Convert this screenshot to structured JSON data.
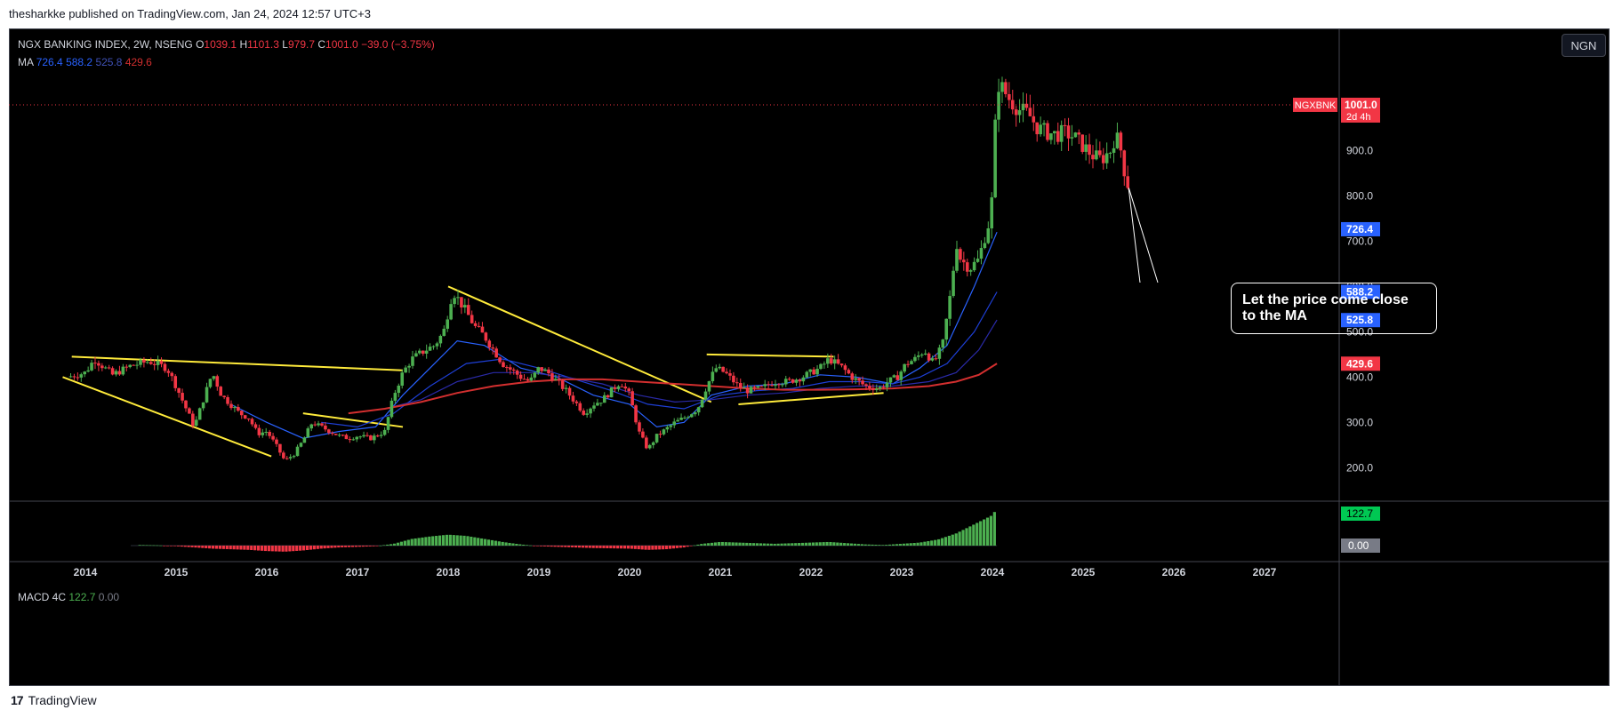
{
  "header": {
    "published_by": "thesharkke published on TradingView.com, Jan 24, 2024 12:57 UTC+3"
  },
  "footer": {
    "logo_text": "TradingView"
  },
  "currency_button": "NGN",
  "legend": {
    "symbol": "NGX BANKING INDEX, 2W, NSENG",
    "o_label": "O",
    "o_value": "1039.1",
    "h_label": "H",
    "h_value": "1101.3",
    "l_label": "L",
    "l_value": "979.7",
    "c_label": "C",
    "c_value": "1001.0",
    "change": "−39.0 (−3.75%)",
    "ma_label": "MA",
    "ma_values": [
      "726.4",
      "588.2",
      "525.8",
      "429.6"
    ]
  },
  "macd_legend": {
    "label": "MACD 4C",
    "value1": "122.7",
    "value2": "0.00"
  },
  "annotation": {
    "text": "Let the price come close\n to the MA"
  },
  "colors": {
    "bull": "#4caf50",
    "bear": "#f23645",
    "trendline": "#ffeb3b",
    "ma_fast": "#2962ff",
    "ma_mid": "#1e3fd6",
    "ma_slow": "#2a2aa8",
    "ma_long": "#d32f2f"
  },
  "chart_data": {
    "type": "candlestick",
    "timeframe": "2W",
    "x_tick_labels": [
      "2014",
      "2015",
      "2016",
      "2017",
      "2018",
      "2019",
      "2020",
      "2021",
      "2022",
      "2023",
      "2024",
      "2025",
      "2026",
      "2027"
    ],
    "y_tick_labels": [
      "200.0",
      "300.0",
      "400.0",
      "500.0",
      "600.0",
      "700.0",
      "800.0",
      "900.0",
      "1001.0"
    ],
    "ylim": [
      130,
      1150
    ],
    "price_label": {
      "symbol": "NGXBNK",
      "value": "1001.0",
      "countdown": "2d 4h",
      "value_num": 1001.0
    },
    "ma_labels": [
      {
        "value": "726.4",
        "num": 726.4,
        "color": "#2962ff"
      },
      {
        "value": "588.2",
        "num": 588.2,
        "color": "#2962ff"
      },
      {
        "value": "525.8",
        "num": 525.8,
        "color": "#2962ff"
      },
      {
        "value": "429.6",
        "num": 429.6,
        "color": "#f23645"
      }
    ],
    "price_path": [
      [
        2013.8,
        400
      ],
      [
        2014.0,
        410
      ],
      [
        2014.1,
        440
      ],
      [
        2014.3,
        405
      ],
      [
        2014.5,
        425
      ],
      [
        2014.7,
        435
      ],
      [
        2014.9,
        420
      ],
      [
        2015.0,
        380
      ],
      [
        2015.2,
        290
      ],
      [
        2015.3,
        350
      ],
      [
        2015.4,
        410
      ],
      [
        2015.5,
        360
      ],
      [
        2015.7,
        320
      ],
      [
        2015.8,
        310
      ],
      [
        2015.9,
        275
      ],
      [
        2016.0,
        280
      ],
      [
        2016.1,
        250
      ],
      [
        2016.2,
        215
      ],
      [
        2016.3,
        230
      ],
      [
        2016.4,
        260
      ],
      [
        2016.5,
        300
      ],
      [
        2016.6,
        290
      ],
      [
        2016.8,
        270
      ],
      [
        2016.9,
        265
      ],
      [
        2017.0,
        270
      ],
      [
        2017.15,
        265
      ],
      [
        2017.3,
        280
      ],
      [
        2017.4,
        360
      ],
      [
        2017.5,
        410
      ],
      [
        2017.6,
        440
      ],
      [
        2017.75,
        460
      ],
      [
        2017.85,
        470
      ],
      [
        2017.95,
        500
      ],
      [
        2018.05,
        590
      ],
      [
        2018.15,
        560
      ],
      [
        2018.3,
        510
      ],
      [
        2018.4,
        490
      ],
      [
        2018.5,
        460
      ],
      [
        2018.6,
        430
      ],
      [
        2018.8,
        400
      ],
      [
        2018.9,
        390
      ],
      [
        2019.0,
        420
      ],
      [
        2019.1,
        410
      ],
      [
        2019.2,
        390
      ],
      [
        2019.3,
        370
      ],
      [
        2019.5,
        320
      ],
      [
        2019.6,
        340
      ],
      [
        2019.7,
        350
      ],
      [
        2019.8,
        370
      ],
      [
        2019.9,
        390
      ],
      [
        2020.0,
        360
      ],
      [
        2020.1,
        280
      ],
      [
        2020.2,
        240
      ],
      [
        2020.3,
        270
      ],
      [
        2020.5,
        300
      ],
      [
        2020.6,
        310
      ],
      [
        2020.75,
        330
      ],
      [
        2020.85,
        380
      ],
      [
        2020.95,
        420
      ],
      [
        2021.05,
        410
      ],
      [
        2021.2,
        380
      ],
      [
        2021.3,
        370
      ],
      [
        2021.45,
        375
      ],
      [
        2021.6,
        390
      ],
      [
        2021.75,
        390
      ],
      [
        2021.9,
        400
      ],
      [
        2022.0,
        410
      ],
      [
        2022.1,
        420
      ],
      [
        2022.2,
        440
      ],
      [
        2022.35,
        420
      ],
      [
        2022.45,
        400
      ],
      [
        2022.6,
        380
      ],
      [
        2022.75,
        375
      ],
      [
        2022.85,
        390
      ],
      [
        2022.95,
        400
      ],
      [
        2023.05,
        430
      ],
      [
        2023.15,
        440
      ],
      [
        2023.25,
        460
      ],
      [
        2023.35,
        430
      ],
      [
        2023.45,
        470
      ],
      [
        2023.55,
        600
      ],
      [
        2023.6,
        700
      ],
      [
        2023.65,
        660
      ],
      [
        2023.75,
        640
      ],
      [
        2023.85,
        660
      ],
      [
        2023.9,
        700
      ],
      [
        2023.95,
        730
      ],
      [
        2024.0,
        800
      ],
      [
        2024.02,
        900
      ],
      [
        2024.05,
        1050
      ],
      [
        2024.1,
        1040
      ],
      [
        2024.2,
        1010
      ],
      [
        2024.3,
        990
      ],
      [
        2024.4,
        980
      ],
      [
        2024.5,
        950
      ],
      [
        2024.6,
        940
      ],
      [
        2024.7,
        935
      ],
      [
        2024.8,
        940
      ],
      [
        2024.9,
        930
      ],
      [
        2025.0,
        910
      ],
      [
        2025.1,
        890
      ],
      [
        2025.2,
        880
      ],
      [
        2025.3,
        900
      ],
      [
        2025.35,
        930
      ],
      [
        2025.4,
        920
      ],
      [
        2025.45,
        860
      ],
      [
        2025.5,
        820
      ]
    ],
    "ma_fast_path": [
      [
        2015.6,
        340
      ],
      [
        2016.0,
        300
      ],
      [
        2016.4,
        265
      ],
      [
        2016.8,
        280
      ],
      [
        2017.2,
        290
      ],
      [
        2017.5,
        360
      ],
      [
        2017.8,
        420
      ],
      [
        2018.1,
        480
      ],
      [
        2018.4,
        470
      ],
      [
        2018.8,
        420
      ],
      [
        2019.2,
        400
      ],
      [
        2019.6,
        360
      ],
      [
        2020.0,
        340
      ],
      [
        2020.3,
        290
      ],
      [
        2020.6,
        300
      ],
      [
        2020.9,
        360
      ],
      [
        2021.3,
        380
      ],
      [
        2021.7,
        385
      ],
      [
        2022.1,
        405
      ],
      [
        2022.5,
        400
      ],
      [
        2022.9,
        385
      ],
      [
        2023.2,
        420
      ],
      [
        2023.5,
        470
      ],
      [
        2023.8,
        600
      ],
      [
        2024.05,
        720
      ]
    ],
    "ma_mid_path": [
      [
        2016.6,
        300
      ],
      [
        2017.0,
        290
      ],
      [
        2017.4,
        320
      ],
      [
        2017.8,
        380
      ],
      [
        2018.2,
        430
      ],
      [
        2018.6,
        440
      ],
      [
        2019.0,
        420
      ],
      [
        2019.4,
        395
      ],
      [
        2019.8,
        370
      ],
      [
        2020.2,
        340
      ],
      [
        2020.6,
        330
      ],
      [
        2021.0,
        360
      ],
      [
        2021.4,
        370
      ],
      [
        2021.8,
        375
      ],
      [
        2022.2,
        390
      ],
      [
        2022.6,
        390
      ],
      [
        2022.9,
        385
      ],
      [
        2023.2,
        400
      ],
      [
        2023.5,
        430
      ],
      [
        2023.8,
        500
      ],
      [
        2024.05,
        588
      ]
    ],
    "ma_slow_path": [
      [
        2017.3,
        330
      ],
      [
        2017.7,
        350
      ],
      [
        2018.1,
        390
      ],
      [
        2018.5,
        410
      ],
      [
        2018.9,
        410
      ],
      [
        2019.3,
        400
      ],
      [
        2019.7,
        385
      ],
      [
        2020.1,
        360
      ],
      [
        2020.5,
        345
      ],
      [
        2020.9,
        350
      ],
      [
        2021.3,
        360
      ],
      [
        2021.7,
        365
      ],
      [
        2022.1,
        375
      ],
      [
        2022.5,
        380
      ],
      [
        2022.9,
        380
      ],
      [
        2023.3,
        390
      ],
      [
        2023.6,
        410
      ],
      [
        2023.85,
        460
      ],
      [
        2024.05,
        526
      ]
    ],
    "ma_long_path": [
      [
        2016.9,
        320
      ],
      [
        2017.3,
        330
      ],
      [
        2017.7,
        345
      ],
      [
        2018.1,
        365
      ],
      [
        2018.5,
        380
      ],
      [
        2018.9,
        390
      ],
      [
        2019.3,
        395
      ],
      [
        2019.7,
        395
      ],
      [
        2020.1,
        390
      ],
      [
        2020.5,
        385
      ],
      [
        2020.9,
        380
      ],
      [
        2021.3,
        375
      ],
      [
        2021.7,
        372
      ],
      [
        2022.1,
        372
      ],
      [
        2022.5,
        373
      ],
      [
        2022.9,
        375
      ],
      [
        2023.3,
        380
      ],
      [
        2023.6,
        390
      ],
      [
        2023.85,
        405
      ],
      [
        2024.05,
        430
      ]
    ],
    "trendlines": [
      [
        [
          2013.75,
          400
        ],
        [
          2016.05,
          225
        ]
      ],
      [
        [
          2013.85,
          445
        ],
        [
          2017.5,
          415
        ]
      ],
      [
        [
          2016.4,
          320
        ],
        [
          2017.5,
          290
        ]
      ],
      [
        [
          2018.0,
          600
        ],
        [
          2020.9,
          345
        ]
      ],
      [
        [
          2020.85,
          450
        ],
        [
          2022.25,
          445
        ]
      ],
      [
        [
          2021.2,
          340
        ],
        [
          2022.8,
          365
        ]
      ]
    ],
    "macd_histogram": [
      [
        2014.6,
        2
      ],
      [
        2014.8,
        1
      ],
      [
        2015.0,
        -2
      ],
      [
        2015.2,
        -6
      ],
      [
        2015.4,
        -10
      ],
      [
        2015.6,
        -12
      ],
      [
        2015.8,
        -14
      ],
      [
        2016.0,
        -18
      ],
      [
        2016.2,
        -20
      ],
      [
        2016.4,
        -16
      ],
      [
        2016.6,
        -10
      ],
      [
        2016.8,
        -6
      ],
      [
        2017.0,
        -4
      ],
      [
        2017.2,
        -2
      ],
      [
        2017.4,
        6
      ],
      [
        2017.6,
        22
      ],
      [
        2017.8,
        30
      ],
      [
        2018.0,
        36
      ],
      [
        2018.2,
        32
      ],
      [
        2018.4,
        22
      ],
      [
        2018.6,
        12
      ],
      [
        2018.8,
        4
      ],
      [
        2019.0,
        -2
      ],
      [
        2019.2,
        -4
      ],
      [
        2019.4,
        -6
      ],
      [
        2019.6,
        -8
      ],
      [
        2019.8,
        -9
      ],
      [
        2020.0,
        -10
      ],
      [
        2020.2,
        -14
      ],
      [
        2020.4,
        -12
      ],
      [
        2020.6,
        -6
      ],
      [
        2020.8,
        6
      ],
      [
        2021.0,
        12
      ],
      [
        2021.2,
        10
      ],
      [
        2021.4,
        8
      ],
      [
        2021.6,
        6
      ],
      [
        2021.8,
        8
      ],
      [
        2022.0,
        10
      ],
      [
        2022.2,
        12
      ],
      [
        2022.4,
        8
      ],
      [
        2022.6,
        4
      ],
      [
        2022.8,
        2
      ],
      [
        2023.0,
        6
      ],
      [
        2023.2,
        10
      ],
      [
        2023.4,
        20
      ],
      [
        2023.6,
        40
      ],
      [
        2023.8,
        70
      ],
      [
        2024.0,
        100
      ],
      [
        2024.05,
        122.7
      ]
    ]
  }
}
